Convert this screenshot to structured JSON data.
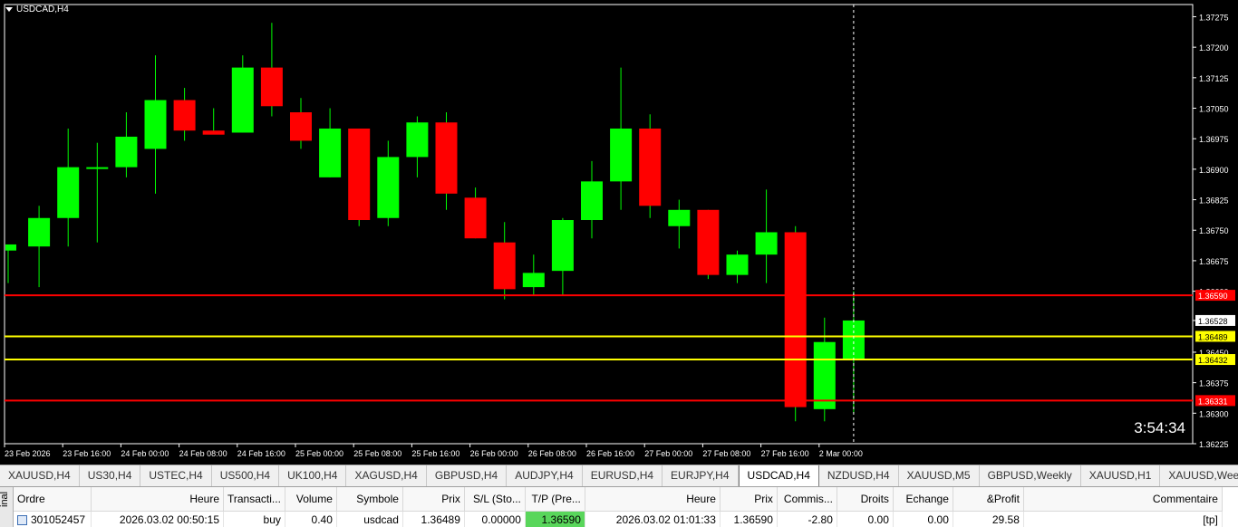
{
  "chart": {
    "title": "USDCAD,H4",
    "timer": "3:54:34",
    "colors": {
      "background": "#000000",
      "bull": "#00ff00",
      "bear": "#ff0000",
      "wick": "#00ff00",
      "axis": "#ffffff",
      "tp_line": "#ff0000",
      "entry_line": "#ffff00"
    },
    "price_range": [
      1.36225,
      1.37305
    ],
    "price_ticks": [
      "1.37275",
      "1.37200",
      "1.37125",
      "1.37050",
      "1.36975",
      "1.36900",
      "1.36825",
      "1.36750",
      "1.36675",
      "1.36600",
      "1.36528",
      "1.36450",
      "1.36375",
      "1.36300",
      "1.36225"
    ],
    "time_labels": [
      "23 Feb 2026",
      "23 Feb 16:00",
      "24 Feb 00:00",
      "24 Feb 08:00",
      "24 Feb 16:00",
      "25 Feb 00:00",
      "25 Feb 08:00",
      "25 Feb 16:00",
      "26 Feb 00:00",
      "26 Feb 08:00",
      "26 Feb 16:00",
      "27 Feb 00:00",
      "27 Feb 08:00",
      "27 Feb 16:00",
      "2 Mar 00:00"
    ],
    "candles": [
      {
        "o": 1.367,
        "h": 1.3671,
        "l": 1.3662,
        "c": 1.36715
      },
      {
        "o": 1.3671,
        "h": 1.3681,
        "l": 1.3661,
        "c": 1.3678
      },
      {
        "o": 1.3678,
        "h": 1.37,
        "l": 1.3671,
        "c": 1.36905
      },
      {
        "o": 1.36905,
        "h": 1.36965,
        "l": 1.3672,
        "c": 1.36905
      },
      {
        "o": 1.36905,
        "h": 1.3704,
        "l": 1.3688,
        "c": 1.3698
      },
      {
        "o": 1.3695,
        "h": 1.3718,
        "l": 1.3684,
        "c": 1.3707
      },
      {
        "o": 1.3707,
        "h": 1.371,
        "l": 1.3697,
        "c": 1.36995
      },
      {
        "o": 1.36995,
        "h": 1.3705,
        "l": 1.3699,
        "c": 1.36985
      },
      {
        "o": 1.3699,
        "h": 1.3718,
        "l": 1.3699,
        "c": 1.3715
      },
      {
        "o": 1.3715,
        "h": 1.3726,
        "l": 1.3703,
        "c": 1.37055
      },
      {
        "o": 1.3704,
        "h": 1.37075,
        "l": 1.3695,
        "c": 1.3697
      },
      {
        "o": 1.3688,
        "h": 1.3705,
        "l": 1.3688,
        "c": 1.37
      },
      {
        "o": 1.37,
        "h": 1.37,
        "l": 1.3676,
        "c": 1.36775
      },
      {
        "o": 1.3678,
        "h": 1.3697,
        "l": 1.3676,
        "c": 1.3693
      },
      {
        "o": 1.3693,
        "h": 1.3703,
        "l": 1.3688,
        "c": 1.37015
      },
      {
        "o": 1.37015,
        "h": 1.3704,
        "l": 1.368,
        "c": 1.3684
      },
      {
        "o": 1.3683,
        "h": 1.36855,
        "l": 1.3673,
        "c": 1.3673
      },
      {
        "o": 1.3672,
        "h": 1.3677,
        "l": 1.3658,
        "c": 1.36605
      },
      {
        "o": 1.3661,
        "h": 1.3669,
        "l": 1.3659,
        "c": 1.36645
      },
      {
        "o": 1.3665,
        "h": 1.3678,
        "l": 1.3659,
        "c": 1.36775
      },
      {
        "o": 1.36775,
        "h": 1.3692,
        "l": 1.3673,
        "c": 1.3687
      },
      {
        "o": 1.3687,
        "h": 1.3715,
        "l": 1.368,
        "c": 1.37
      },
      {
        "o": 1.37,
        "h": 1.37035,
        "l": 1.3678,
        "c": 1.3681
      },
      {
        "o": 1.3676,
        "h": 1.36825,
        "l": 1.36705,
        "c": 1.368
      },
      {
        "o": 1.368,
        "h": 1.368,
        "l": 1.3663,
        "c": 1.3664
      },
      {
        "o": 1.3664,
        "h": 1.367,
        "l": 1.3662,
        "c": 1.3669
      },
      {
        "o": 1.3669,
        "h": 1.3685,
        "l": 1.3662,
        "c": 1.36745
      },
      {
        "o": 1.36745,
        "h": 1.3676,
        "l": 1.3628,
        "c": 1.36315
      },
      {
        "o": 1.3631,
        "h": 1.36535,
        "l": 1.3628,
        "c": 1.36475
      },
      {
        "o": 1.36432,
        "h": 1.366,
        "l": 1.363,
        "c": 1.36528
      }
    ],
    "h_lines": [
      {
        "price": 1.3659,
        "color": "#ff0000",
        "label": "1.36590"
      },
      {
        "price": 1.36489,
        "color": "#ffff00",
        "label": "1.36489"
      },
      {
        "price": 1.36432,
        "color": "#ffff00",
        "label": "1.36432"
      },
      {
        "price": 1.36331,
        "color": "#ff0000",
        "label": "1.36331"
      }
    ],
    "current_price_label": "1.36528"
  },
  "tabs": [
    {
      "label": "XAUUSD,H4",
      "active": false
    },
    {
      "label": "US30,H4",
      "active": false
    },
    {
      "label": "USTEC,H4",
      "active": false
    },
    {
      "label": "US500,H4",
      "active": false
    },
    {
      "label": "UK100,H4",
      "active": false
    },
    {
      "label": "XAGUSD,H4",
      "active": false
    },
    {
      "label": "GBPUSD,H4",
      "active": false
    },
    {
      "label": "AUDJPY,H4",
      "active": false
    },
    {
      "label": "EURUSD,H4",
      "active": false
    },
    {
      "label": "EURJPY,H4",
      "active": false
    },
    {
      "label": "USDCAD,H4",
      "active": true
    },
    {
      "label": "NZDUSD,H4",
      "active": false
    },
    {
      "label": "XAUUSD,M5",
      "active": false
    },
    {
      "label": "GBPUSD,Weekly",
      "active": false
    },
    {
      "label": "XAUUSD,H1",
      "active": false
    },
    {
      "label": "XAUUSD,Wee",
      "active": false
    }
  ],
  "terminal": {
    "side_label": "inal",
    "columns": [
      "Ordre",
      "Heure",
      "Transacti...",
      "Volume",
      "Symbole",
      "Prix",
      "S/L (Sto...",
      "T/P (Pre...",
      "Heure",
      "Prix",
      "Commis...",
      "Droits",
      "Echange",
      "&Profit",
      "Commentaire"
    ],
    "row": {
      "order": "301052457",
      "open_time": "2026.03.02 00:50:15",
      "type": "buy",
      "volume": "0.40",
      "symbol": "usdcad",
      "price": "1.36489",
      "sl": "0.00000",
      "tp": "1.36590",
      "close_time": "2026.03.02 01:01:33",
      "close_price": "1.36590",
      "commission": "-2.80",
      "swap": "0.00",
      "exchange": "0.00",
      "profit": "29.58",
      "comment": "[tp]"
    }
  }
}
